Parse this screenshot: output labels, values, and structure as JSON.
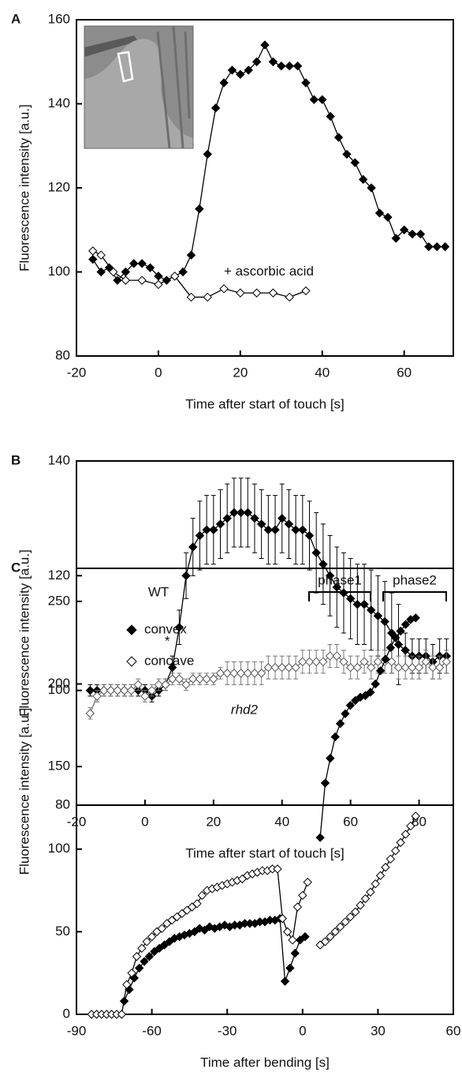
{
  "chart_data": [
    {
      "type": "line",
      "panel_label": "A",
      "xlabel": "Time after start of touch [s]",
      "ylabel": "Fluorescence intensity [a.u.]",
      "xlim": [
        -20,
        72
      ],
      "ylim": [
        80,
        160
      ],
      "xticks": [
        -20,
        0,
        20,
        40,
        60
      ],
      "yticks": [
        80,
        100,
        120,
        140,
        160
      ],
      "series": [
        {
          "color": "#000000",
          "fill": "#000000",
          "x": [
            -16,
            -14,
            -12,
            -10,
            -8,
            -6,
            -4,
            -2,
            0,
            2,
            4,
            6,
            8,
            10,
            12,
            14,
            16,
            18,
            20,
            22,
            24,
            26,
            28,
            30,
            32,
            34,
            36,
            38,
            40,
            42,
            44,
            46,
            48,
            50,
            52,
            54,
            56,
            58,
            60,
            62,
            64,
            66,
            68,
            70
          ],
          "values": [
            103,
            100,
            101,
            98,
            100,
            102,
            102,
            101,
            99,
            98,
            99,
            100,
            104,
            115,
            128,
            139,
            145,
            148,
            147,
            148,
            150,
            154,
            150,
            149,
            149,
            149,
            145,
            141,
            141,
            137,
            132,
            128,
            126,
            122,
            120,
            114,
            113,
            108,
            110,
            109,
            109,
            106,
            106,
            106
          ]
        },
        {
          "name": "+ ascorbic acid",
          "color": "#000000",
          "fill": "#ffffff",
          "x": [
            -16,
            -14,
            -11,
            -8,
            -4,
            0,
            4,
            8,
            12,
            16,
            20,
            24,
            28,
            32,
            36
          ],
          "values": [
            105,
            104,
            100,
            98,
            98,
            97,
            99,
            94,
            94,
            96,
            95,
            95,
            95,
            94,
            95.5
          ]
        }
      ]
    },
    {
      "type": "line",
      "panel_label": "B",
      "xlabel": "Time after start of touch [s]",
      "ylabel": "Fluorescence intensity [a.u.]",
      "xlim": [
        -20,
        90
      ],
      "ylim": [
        80,
        140
      ],
      "xticks": [
        -20,
        0,
        20,
        40,
        60,
        80
      ],
      "yticks": [
        80,
        100,
        120,
        140
      ],
      "annotations": [
        "*"
      ],
      "series": [
        {
          "name": "WT",
          "color": "#000000",
          "fill": "#000000",
          "x": [
            -16,
            -14,
            -12,
            -10,
            -8,
            -6,
            -4,
            -2,
            0,
            2,
            4,
            6,
            8,
            10,
            12,
            14,
            16,
            18,
            20,
            22,
            24,
            26,
            28,
            30,
            32,
            34,
            36,
            38,
            40,
            42,
            44,
            46,
            48,
            50,
            52,
            54,
            56,
            58,
            60,
            62,
            64,
            66,
            68,
            70,
            72,
            74,
            76,
            78,
            80,
            82,
            84,
            86,
            88
          ],
          "values": [
            100,
            100,
            100,
            100,
            100,
            100,
            100,
            100,
            100,
            99,
            100,
            101,
            104,
            111,
            120,
            125,
            127,
            128,
            128,
            129,
            130,
            131,
            131,
            131,
            130,
            129,
            128,
            128,
            130,
            129,
            128,
            128,
            127,
            124,
            122,
            120,
            118,
            117,
            116,
            115,
            115,
            114,
            113,
            112,
            110,
            108,
            107,
            106,
            106,
            106,
            105,
            106,
            106
          ],
          "errors": [
            1,
            1,
            1,
            1,
            1,
            1,
            1,
            1,
            1,
            1,
            1,
            1,
            2,
            3,
            4,
            5,
            6,
            6,
            6,
            6,
            6,
            6,
            6,
            6,
            6,
            6,
            6,
            6,
            6,
            6,
            6,
            6,
            6,
            7,
            7,
            7,
            7,
            7,
            7,
            7,
            7,
            7,
            7,
            7,
            7,
            7,
            3,
            3,
            3,
            3,
            3,
            3,
            3
          ]
        },
        {
          "name": "rhd2",
          "color": "#777777",
          "fill": "#ffffff",
          "x": [
            -16,
            -14,
            -12,
            -10,
            -8,
            -6,
            -4,
            -2,
            0,
            2,
            4,
            6,
            8,
            10,
            12,
            14,
            16,
            18,
            20,
            22,
            24,
            26,
            28,
            30,
            32,
            34,
            36,
            38,
            40,
            42,
            44,
            46,
            48,
            50,
            52,
            54,
            56,
            58,
            60,
            62,
            64,
            66,
            68,
            70,
            72,
            74,
            76,
            78,
            80,
            82,
            84,
            86,
            88
          ],
          "values": [
            96,
            99,
            100,
            100,
            100,
            100,
            100,
            101,
            99,
            100,
            101,
            101,
            102,
            102,
            101,
            102,
            102,
            102,
            102,
            103,
            103,
            103,
            103,
            103,
            103,
            103,
            104,
            104,
            104,
            104,
            104,
            105,
            105,
            105,
            105,
            106,
            106,
            105,
            104,
            104,
            105,
            104,
            105,
            105,
            105,
            104,
            104,
            104,
            104,
            105,
            104,
            104,
            105
          ],
          "errors": [
            1,
            1,
            1,
            1,
            1,
            1,
            1,
            1,
            1,
            1,
            1,
            1,
            1,
            1,
            1,
            1,
            1,
            1,
            1,
            1,
            2,
            2,
            2,
            2,
            2,
            2,
            2,
            2,
            2,
            2,
            2,
            2,
            2,
            2,
            2,
            2,
            2,
            2,
            2,
            2,
            2,
            2,
            2,
            2,
            2,
            2,
            2,
            2,
            2,
            2,
            2,
            2,
            2
          ]
        }
      ]
    },
    {
      "type": "line",
      "panel_label": "C",
      "xlabel": "Time after bending [s]",
      "ylabel": "Fluorescence intensity [a.u.]",
      "xlim": [
        -90,
        60
      ],
      "ylim": [
        0,
        270
      ],
      "xticks": [
        -90,
        -60,
        -30,
        0,
        30,
        60
      ],
      "yticks": [
        0,
        50,
        100,
        150,
        200,
        250
      ],
      "legend": "center left",
      "annotations": [
        "phase1",
        "phase2"
      ],
      "series": [
        {
          "name": "convex",
          "color": "#000000",
          "fill": "#000000",
          "x": [
            -71,
            -69,
            -67,
            -65,
            -63,
            -61,
            -59,
            -57,
            -55,
            -53,
            -51,
            -49,
            -47,
            -45,
            -43,
            -41,
            -39,
            -37,
            -35,
            -33,
            -31,
            -29,
            -27,
            -25,
            -23,
            -21,
            -19,
            -17,
            -15,
            -13,
            -11,
            -9,
            -7,
            -5,
            -3,
            -1,
            1,
            null,
            7,
            9,
            11,
            13,
            15,
            17,
            19,
            21,
            23,
            25,
            27,
            29,
            31,
            33,
            35,
            37,
            39,
            41,
            43,
            45
          ],
          "values": [
            8,
            15,
            22,
            28,
            32,
            35,
            38,
            40,
            42,
            44,
            46,
            47,
            48,
            49,
            50,
            52,
            51,
            53,
            52,
            53,
            54,
            53,
            54,
            54,
            55,
            55,
            55,
            56,
            56,
            57,
            57,
            58,
            20,
            28,
            37,
            45,
            47,
            null,
            107,
            140,
            155,
            168,
            176,
            182,
            187,
            190,
            192,
            193,
            195,
            200,
            208,
            215,
            222,
            228,
            232,
            236,
            239,
            240
          ]
        },
        {
          "name": "concave",
          "color": "#000000",
          "fill": "#ffffff",
          "x": [
            -84,
            -82,
            -80,
            -78,
            -76,
            -74,
            -72,
            -70,
            -68,
            -66,
            -64,
            -62,
            -60,
            -58,
            -56,
            -54,
            -52,
            -50,
            -48,
            -46,
            -44,
            -42,
            -40,
            -38,
            -36,
            -34,
            -32,
            -30,
            -28,
            -26,
            -24,
            -22,
            -20,
            -18,
            -16,
            -14,
            -12,
            -10,
            -8,
            -6,
            -4,
            -2,
            0,
            2,
            null,
            7,
            9,
            11,
            13,
            15,
            17,
            19,
            21,
            23,
            25,
            27,
            29,
            31,
            33,
            35,
            37,
            39,
            41,
            43,
            45
          ],
          "values": [
            0,
            0,
            0,
            0,
            0,
            0,
            0,
            18,
            25,
            35,
            40,
            44,
            47,
            50,
            52,
            55,
            57,
            59,
            61,
            63,
            65,
            67,
            72,
            75,
            76,
            77,
            78,
            79,
            80,
            81,
            82,
            84,
            85,
            86,
            87,
            87,
            88,
            88,
            58,
            50,
            45,
            65,
            72,
            80,
            null,
            42,
            44,
            47,
            50,
            53,
            56,
            59,
            62,
            66,
            70,
            74,
            79,
            84,
            89,
            94,
            99,
            104,
            109,
            114,
            120
          ]
        }
      ]
    }
  ]
}
